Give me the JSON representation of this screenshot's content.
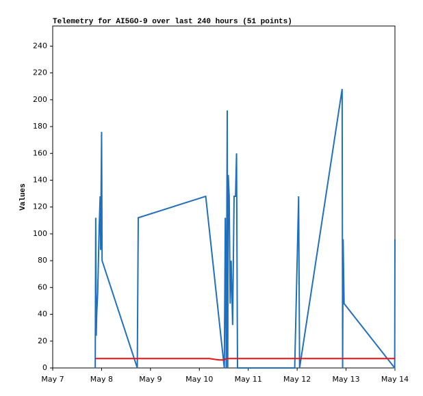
{
  "chart_data": {
    "type": "line",
    "title": "Telemetry for AI5GO-9 over last 240 hours (51 points)",
    "y_label": "Values",
    "xlim": [
      0,
      7
    ],
    "xticks": [
      {
        "value": 0,
        "label": "May 7"
      },
      {
        "value": 1,
        "label": "May 8"
      },
      {
        "value": 2,
        "label": "May 9"
      },
      {
        "value": 3,
        "label": "May 10"
      },
      {
        "value": 4,
        "label": "May 11"
      },
      {
        "value": 5,
        "label": "May 12"
      },
      {
        "value": 6,
        "label": "May 13"
      },
      {
        "value": 7,
        "label": "May 14"
      }
    ],
    "ylim": [
      0,
      255
    ],
    "yticks": [
      0,
      20,
      40,
      60,
      80,
      100,
      120,
      140,
      160,
      180,
      200,
      220,
      240
    ],
    "grid": false,
    "series": [
      {
        "color": "#1f6fbf",
        "x": [
          0.87,
          0.875,
          0.88,
          0.89,
          0.9,
          0.92,
          0.95,
          0.97,
          0.98,
          1.0,
          1.01,
          1.73,
          1.74,
          1.75,
          3.13,
          3.51,
          3.53,
          3.55,
          3.57,
          3.58,
          3.59,
          3.61,
          3.63,
          3.65,
          3.68,
          3.71,
          3.74,
          3.76,
          3.78,
          4.95,
          4.96,
          5.03,
          5.05,
          5.92,
          5.93,
          5.94,
          5.96,
          6.995,
          7.0
        ],
        "values": [
          0,
          56,
          112,
          24,
          40,
          56,
          104,
          128,
          88,
          176,
          80,
          0,
          56,
          112,
          128,
          0,
          112,
          0,
          192,
          0,
          144,
          128,
          48,
          80,
          32,
          128,
          128,
          160,
          0,
          0,
          16,
          128,
          0,
          208,
          0,
          96,
          48,
          0,
          96
        ]
      },
      {
        "color": "#ee1111",
        "x": [
          0.87,
          3.2,
          3.4,
          3.5,
          3.55,
          7.0
        ],
        "values": [
          7,
          7,
          6,
          6,
          7,
          7
        ]
      }
    ]
  }
}
